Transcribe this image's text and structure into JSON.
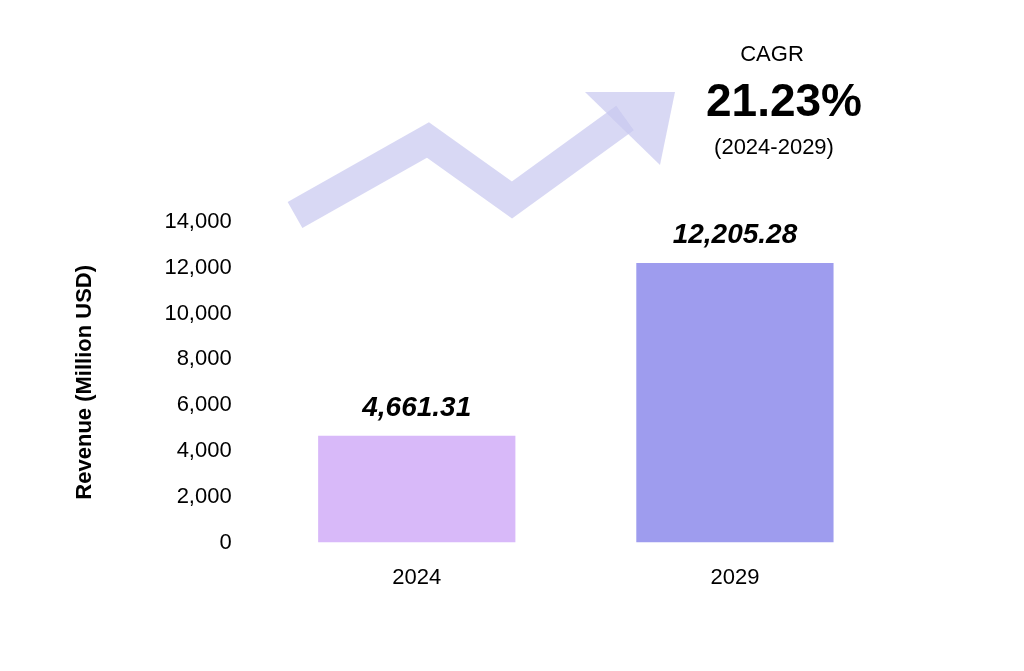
{
  "chart_data": {
    "type": "bar",
    "y_label": "Revenue (Million USD)",
    "categories": [
      "2024",
      "2029"
    ],
    "values": [
      4661.31,
      12205.28
    ],
    "value_labels": [
      "4,661.31",
      "12,205.28"
    ],
    "colors": [
      "#d8b9f9",
      "#9e9cee"
    ],
    "ylim": [
      0,
      14000
    ],
    "yticks": [
      0,
      {
        "value": 2000,
        "label": "2,000"
      },
      {
        "value": 4000,
        "label": "4,000"
      },
      {
        "value": 6000,
        "label": "6,000"
      },
      {
        "value": 8000,
        "label": "8,000"
      },
      {
        "value": 10000,
        "label": "10,000"
      },
      {
        "value": 12000,
        "label": "12,000"
      },
      {
        "value": 14000,
        "label": "14,000"
      }
    ],
    "grid": false,
    "data_labels": true,
    "annotations": [
      "CAGR",
      "21.23%",
      "(2024-2029)"
    ]
  }
}
